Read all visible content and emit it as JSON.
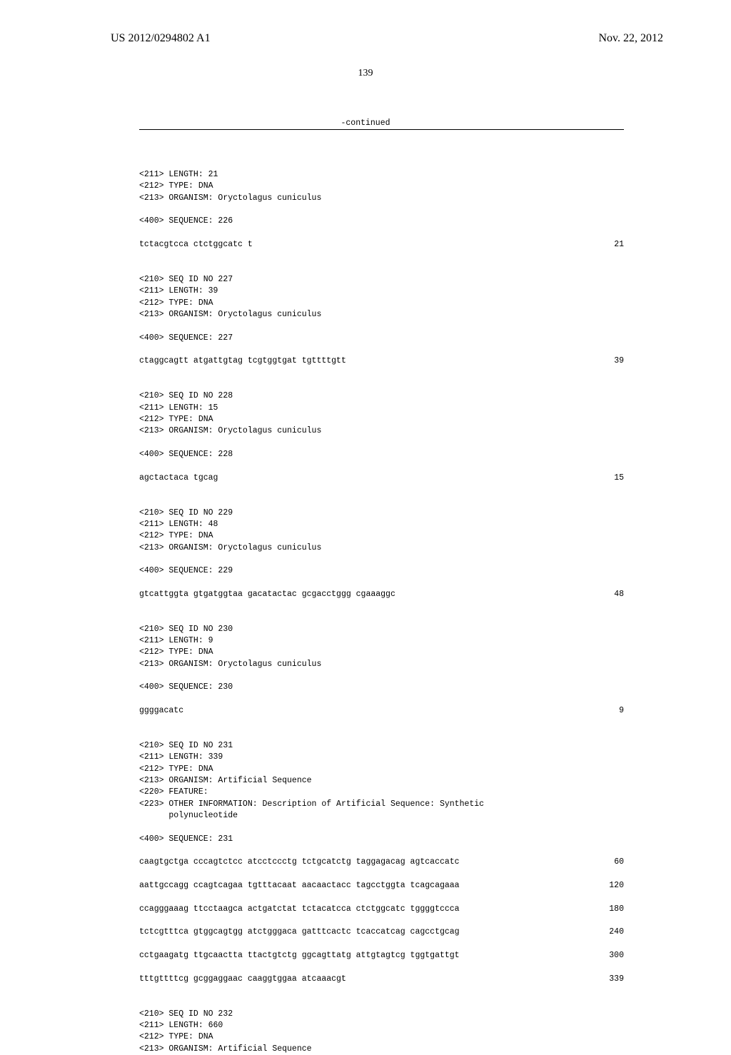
{
  "header": {
    "publication_number": "US 2012/0294802 A1",
    "publication_date": "Nov. 22, 2012"
  },
  "page_number": "139",
  "continued_label": "-continued",
  "sequences": [
    {
      "meta": [
        "<211> LENGTH: 21",
        "<212> TYPE: DNA",
        "<213> ORGANISM: Oryctolagus cuniculus"
      ],
      "seq_header": "<400> SEQUENCE: 226",
      "lines": [
        {
          "text": "tctacgtcca ctctggcatc t",
          "num": "21"
        }
      ]
    },
    {
      "meta": [
        "<210> SEQ ID NO 227",
        "<211> LENGTH: 39",
        "<212> TYPE: DNA",
        "<213> ORGANISM: Oryctolagus cuniculus"
      ],
      "seq_header": "<400> SEQUENCE: 227",
      "lines": [
        {
          "text": "ctaggcagtt atgattgtag tcgtggtgat tgttttgtt",
          "num": "39"
        }
      ]
    },
    {
      "meta": [
        "<210> SEQ ID NO 228",
        "<211> LENGTH: 15",
        "<212> TYPE: DNA",
        "<213> ORGANISM: Oryctolagus cuniculus"
      ],
      "seq_header": "<400> SEQUENCE: 228",
      "lines": [
        {
          "text": "agctactaca tgcag",
          "num": "15"
        }
      ]
    },
    {
      "meta": [
        "<210> SEQ ID NO 229",
        "<211> LENGTH: 48",
        "<212> TYPE: DNA",
        "<213> ORGANISM: Oryctolagus cuniculus"
      ],
      "seq_header": "<400> SEQUENCE: 229",
      "lines": [
        {
          "text": "gtcattggta gtgatggtaa gacatactac gcgacctggg cgaaaggc",
          "num": "48"
        }
      ]
    },
    {
      "meta": [
        "<210> SEQ ID NO 230",
        "<211> LENGTH: 9",
        "<212> TYPE: DNA",
        "<213> ORGANISM: Oryctolagus cuniculus"
      ],
      "seq_header": "<400> SEQUENCE: 230",
      "lines": [
        {
          "text": "ggggacatc",
          "num": "9"
        }
      ]
    },
    {
      "meta": [
        "<210> SEQ ID NO 231",
        "<211> LENGTH: 339",
        "<212> TYPE: DNA",
        "<213> ORGANISM: Artificial Sequence",
        "<220> FEATURE:",
        "<223> OTHER INFORMATION: Description of Artificial Sequence: Synthetic",
        "      polynucleotide"
      ],
      "seq_header": "<400> SEQUENCE: 231",
      "lines": [
        {
          "text": "caagtgctga cccagtctcc atcctccctg tctgcatctg taggagacag agtcaccatc",
          "num": "60"
        },
        {
          "text": "aattgccagg ccagtcagaa tgtttacaat aacaactacc tagcctggta tcagcagaaa",
          "num": "120"
        },
        {
          "text": "ccagggaaag ttcctaagca actgatctat tctacatcca ctctggcatc tggggtccca",
          "num": "180"
        },
        {
          "text": "tctcgtttca gtggcagtgg atctgggaca gatttcactc tcaccatcag cagcctgcag",
          "num": "240"
        },
        {
          "text": "cctgaagatg ttgcaactta ttactgtctg ggcagttatg attgtagtcg tggtgattgt",
          "num": "300"
        },
        {
          "text": "tttgttttcg gcggaggaac caaggtggaa atcaaacgt",
          "num": "339"
        }
      ]
    },
    {
      "meta": [
        "<210> SEQ ID NO 232",
        "<211> LENGTH: 660",
        "<212> TYPE: DNA",
        "<213> ORGANISM: Artificial Sequence"
      ],
      "seq_header": null,
      "lines": []
    }
  ]
}
